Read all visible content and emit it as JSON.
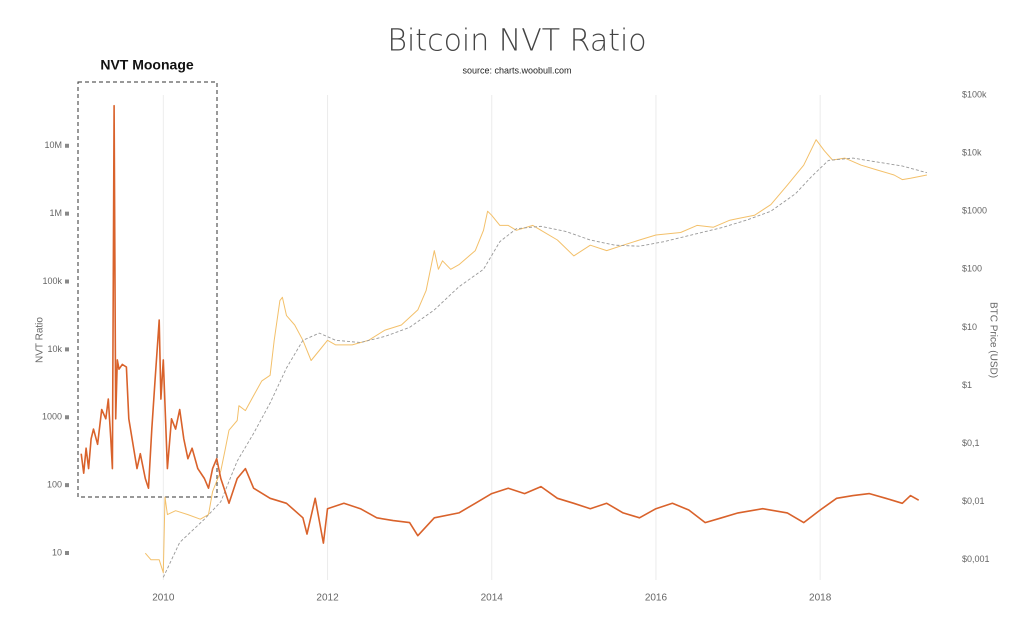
{
  "chart_data": {
    "type": "line",
    "title": "Bitcoin NVT Ratio",
    "subtitle": "source: charts.woobull.com",
    "annotation": "NVT Moonage",
    "y_label": "NVT Ratio",
    "y2_label": "BTC Price (USD)",
    "xlim": [
      2008.9,
      2019.35
    ],
    "xticks": [
      2010,
      2012,
      2014,
      2016,
      2018
    ],
    "ylim": [
      4,
      56000000
    ],
    "ylog": true,
    "yticks": [
      10,
      100,
      1000,
      {
        "value": 10000,
        "label": "10k"
      },
      {
        "value": 100000,
        "label": "100k"
      },
      {
        "value": 1000000,
        "label": "1M"
      },
      {
        "value": 10000000,
        "label": "10M"
      }
    ],
    "y2lim": [
      0.00045,
      100000
    ],
    "y2log": true,
    "y2ticks": [
      {
        "value": 0.001,
        "label": "$0,001"
      },
      {
        "value": 0.01,
        "label": "$0,01"
      },
      {
        "value": 0.1,
        "label": "$0,1"
      },
      {
        "value": 1,
        "label": "$1"
      },
      {
        "value": 10,
        "label": "$10"
      },
      {
        "value": 100,
        "label": "$100"
      },
      {
        "value": 1000,
        "label": "$1000"
      },
      {
        "value": 10000,
        "label": "$10k"
      },
      {
        "value": 100000,
        "label": "$100k"
      }
    ],
    "grid": true,
    "series": [
      {
        "color": "#f3c06a",
        "axis": "y2",
        "x": [
          2009.78,
          2009.85,
          2009.95,
          2010.0,
          2010.02,
          2010.05,
          2010.15,
          2010.3,
          2010.45,
          2010.55,
          2010.6,
          2010.7,
          2010.75,
          2010.8,
          2010.9,
          2010.92,
          2011.0,
          2011.1,
          2011.2,
          2011.3,
          2011.35,
          2011.42,
          2011.45,
          2011.5,
          2011.6,
          2011.7,
          2011.8,
          2011.9,
          2012.0,
          2012.1,
          2012.3,
          2012.5,
          2012.7,
          2012.9,
          2013.1,
          2013.2,
          2013.3,
          2013.35,
          2013.4,
          2013.5,
          2013.6,
          2013.8,
          2013.9,
          2013.95,
          2014.0,
          2014.1,
          2014.2,
          2014.3,
          2014.5,
          2014.6,
          2014.8,
          2015.0,
          2015.2,
          2015.4,
          2015.6,
          2015.8,
          2016.0,
          2016.3,
          2016.5,
          2016.7,
          2016.9,
          2017.0,
          2017.2,
          2017.4,
          2017.6,
          2017.8,
          2017.95,
          2018.05,
          2018.15,
          2018.3,
          2018.5,
          2018.7,
          2018.9,
          2019.0,
          2019.1,
          2019.3
        ],
        "values": [
          0.0013,
          0.001,
          0.001,
          0.0006,
          0.012,
          0.006,
          0.007,
          0.006,
          0.005,
          0.006,
          0.015,
          0.034,
          0.075,
          0.17,
          0.25,
          0.45,
          0.37,
          0.67,
          1.2,
          1.5,
          6,
          29,
          33,
          16,
          11,
          6,
          2.7,
          4,
          6,
          5,
          5,
          6,
          9,
          11,
          20,
          43,
          210,
          100,
          140,
          100,
          120,
          210,
          470,
          1000,
          850,
          570,
          570,
          470,
          570,
          470,
          320,
          170,
          260,
          210,
          260,
          320,
          390,
          430,
          570,
          530,
          700,
          750,
          850,
          1300,
          2800,
          6200,
          17000,
          11000,
          7600,
          8200,
          6200,
          5100,
          4200,
          3500,
          3700,
          4200
        ]
      },
      {
        "color": "#999999",
        "axis": "y2",
        "dashed": true,
        "x": [
          2010.0,
          2010.2,
          2010.5,
          2010.7,
          2010.9,
          2011.1,
          2011.3,
          2011.5,
          2011.7,
          2011.9,
          2012.1,
          2012.4,
          2012.7,
          2013.0,
          2013.3,
          2013.6,
          2013.9,
          2014.1,
          2014.3,
          2014.6,
          2014.9,
          2015.2,
          2015.5,
          2015.8,
          2016.1,
          2016.4,
          2016.8,
          2017.1,
          2017.4,
          2017.7,
          2017.9,
          2018.1,
          2018.4,
          2018.7,
          2019.0,
          2019.3
        ],
        "values": [
          0.0005,
          0.002,
          0.005,
          0.01,
          0.05,
          0.15,
          0.5,
          2,
          6,
          8,
          6,
          5.5,
          7,
          10,
          20,
          50,
          100,
          300,
          500,
          550,
          450,
          320,
          260,
          250,
          300,
          380,
          520,
          700,
          1000,
          2000,
          4000,
          7500,
          8200,
          7000,
          6000,
          4600
        ]
      },
      {
        "color": "#d9622b",
        "x": [
          2009.0,
          2009.03,
          2009.06,
          2009.09,
          2009.12,
          2009.15,
          2009.2,
          2009.25,
          2009.3,
          2009.33,
          2009.36,
          2009.38,
          2009.4,
          2009.42,
          2009.44,
          2009.46,
          2009.5,
          2009.55,
          2009.58,
          2009.62,
          2009.68,
          2009.72,
          2009.78,
          2009.82,
          2009.86,
          2009.9,
          2009.95,
          2009.97,
          2010.0,
          2010.05,
          2010.1,
          2010.15,
          2010.2,
          2010.25,
          2010.3,
          2010.35,
          2010.42,
          2010.5,
          2010.55,
          2010.6,
          2010.65,
          2010.7,
          2010.8,
          2010.9,
          2011.0,
          2011.1,
          2011.3,
          2011.5,
          2011.7,
          2011.75,
          2011.85,
          2011.95,
          2012.0,
          2012.2,
          2012.4,
          2012.6,
          2012.8,
          2013.0,
          2013.1,
          2013.3,
          2013.6,
          2013.8,
          2014.0,
          2014.2,
          2014.4,
          2014.6,
          2014.8,
          2015.0,
          2015.2,
          2015.4,
          2015.6,
          2015.8,
          2016.0,
          2016.2,
          2016.4,
          2016.6,
          2016.8,
          2017.0,
          2017.3,
          2017.6,
          2017.8,
          2018.0,
          2018.2,
          2018.4,
          2018.6,
          2018.8,
          2019.0,
          2019.1,
          2019.2
        ],
        "values": [
          290,
          150,
          350,
          175,
          480,
          670,
          400,
          1300,
          950,
          1850,
          480,
          175,
          39000000,
          950,
          7000,
          5100,
          6000,
          5500,
          950,
          480,
          175,
          290,
          125,
          90,
          670,
          3600,
          27000,
          1850,
          7000,
          175,
          950,
          670,
          1300,
          480,
          245,
          350,
          175,
          125,
          90,
          175,
          245,
          125,
          54,
          125,
          175,
          90,
          64,
          54,
          33,
          19,
          64,
          14,
          45,
          54,
          45,
          33,
          30,
          28,
          18,
          33,
          39,
          54,
          75,
          90,
          75,
          95,
          64,
          54,
          45,
          54,
          39,
          33,
          45,
          54,
          43,
          28,
          33,
          39,
          45,
          39,
          28,
          43,
          64,
          70,
          75,
          64,
          54,
          70,
          60
        ]
      }
    ]
  }
}
